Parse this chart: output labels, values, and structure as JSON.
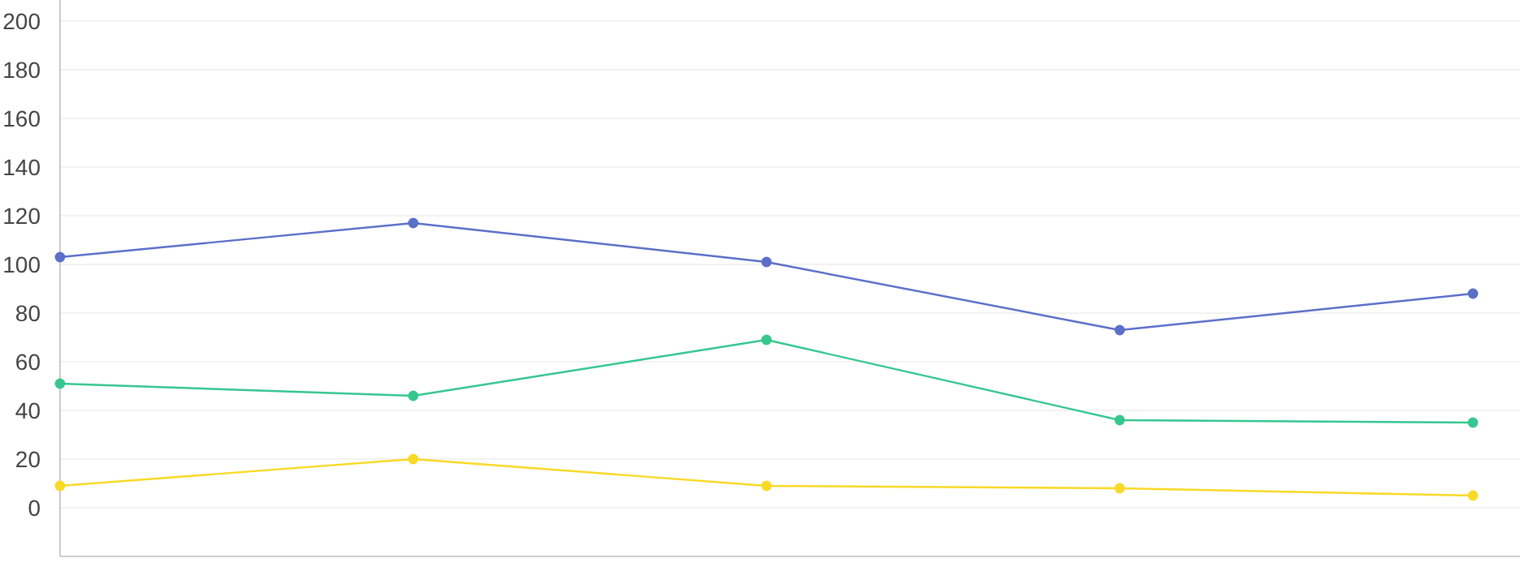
{
  "chart_data": {
    "type": "line",
    "categories": [
      null,
      null,
      null,
      null,
      null
    ],
    "series": [
      {
        "color": "#5b6fc9",
        "values": [
          103,
          117,
          101,
          73,
          88
        ]
      },
      {
        "color": "#36c690",
        "values": [
          51,
          46,
          69,
          36,
          35
        ]
      },
      {
        "color": "#f8d926",
        "values": [
          9,
          20,
          9,
          8,
          5
        ]
      }
    ],
    "ylim": [
      -20,
      200
    ],
    "yticks": [
      0,
      20,
      40,
      60,
      80,
      100,
      120,
      140,
      160,
      180,
      200
    ],
    "grid": "y",
    "marker": "circle",
    "line_style": "solid"
  }
}
